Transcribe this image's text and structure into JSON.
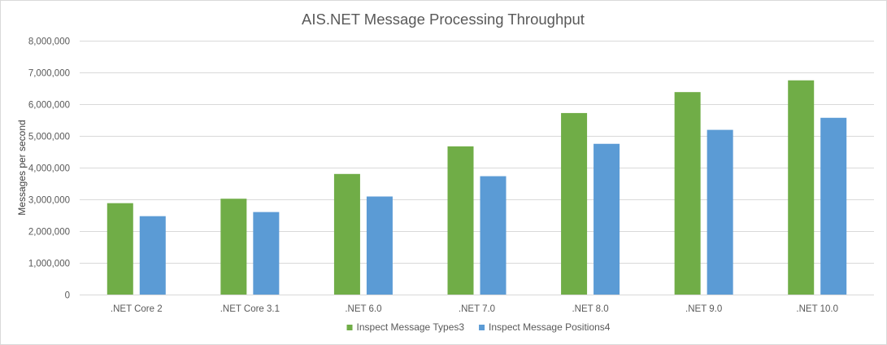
{
  "chart_data": {
    "type": "bar",
    "title": "AIS.NET Message Processing Throughput",
    "xlabel": "",
    "ylabel": "Messages per second",
    "ylim": [
      0,
      8000000
    ],
    "ytick_values": [
      0,
      1000000,
      2000000,
      3000000,
      4000000,
      5000000,
      6000000,
      7000000,
      8000000
    ],
    "ytick_labels": [
      "0",
      "1,000,000",
      "2,000,000",
      "3,000,000",
      "4,000,000",
      "5,000,000",
      "6,000,000",
      "7,000,000",
      "8,000,000"
    ],
    "categories": [
      ".NET Core 2",
      ".NET Core 3.1",
      ".NET 6.0",
      ".NET 7.0",
      ".NET 8.0",
      ".NET 9.0",
      ".NET 10.0"
    ],
    "series": [
      {
        "name": "Inspect Message Types3",
        "color": "#70ad47",
        "values": [
          2880000,
          3020000,
          3800000,
          4670000,
          5720000,
          6380000,
          6750000
        ]
      },
      {
        "name": "Inspect Message Positions4",
        "color": "#5b9bd5",
        "values": [
          2470000,
          2600000,
          3090000,
          3730000,
          4750000,
          5190000,
          5570000
        ]
      }
    ],
    "grid": true,
    "gridline_color": "#d9d9d9",
    "legend_position": "bottom"
  }
}
